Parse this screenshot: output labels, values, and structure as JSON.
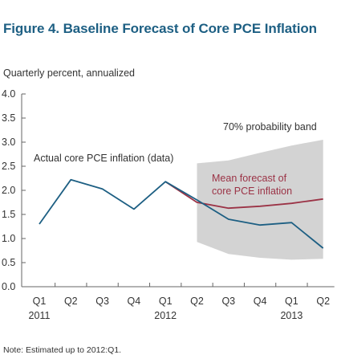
{
  "chart_data": {
    "type": "line",
    "title": "Figure 4. Baseline Forecast of Core PCE Inflation",
    "ylabel": "Quarterly percent, annualized",
    "note": "Note: Estimated up to 2012:Q1.",
    "ylim": [
      0,
      4
    ],
    "yticks": [
      "0.0",
      "0.5",
      "1.0",
      "1.5",
      "2.0",
      "2.5",
      "3.0",
      "3.5",
      "4.0"
    ],
    "quarters": [
      "Q1",
      "Q2",
      "Q3",
      "Q4",
      "Q1",
      "Q2",
      "Q3",
      "Q4",
      "Q1",
      "Q2"
    ],
    "years": [
      {
        "label": "2011",
        "index": 0
      },
      {
        "label": "2012",
        "index": 4
      },
      {
        "label": "2013",
        "index": 8
      }
    ],
    "grid": false,
    "series": [
      {
        "name": "Actual core PCE inflation (data)",
        "color": "#1d5f83",
        "x": [
          0,
          1,
          2,
          3,
          4,
          5,
          6,
          7,
          8,
          9
        ],
        "values": [
          1.3,
          2.22,
          2.03,
          1.61,
          2.18,
          1.8,
          1.4,
          1.28,
          1.33,
          0.8
        ]
      },
      {
        "name": "Mean forecast of core PCE inflation",
        "color": "#9b3346",
        "x": [
          4,
          5,
          6,
          7,
          8,
          9
        ],
        "values": [
          2.18,
          1.75,
          1.63,
          1.67,
          1.73,
          1.82
        ]
      }
    ],
    "band": {
      "name": "70% probability band",
      "color": "#d3d3d3",
      "x": [
        5,
        6,
        7,
        8,
        9
      ],
      "upper": [
        2.56,
        2.62,
        2.78,
        2.93,
        3.05
      ],
      "lower": [
        0.93,
        0.68,
        0.6,
        0.56,
        0.58
      ]
    }
  }
}
